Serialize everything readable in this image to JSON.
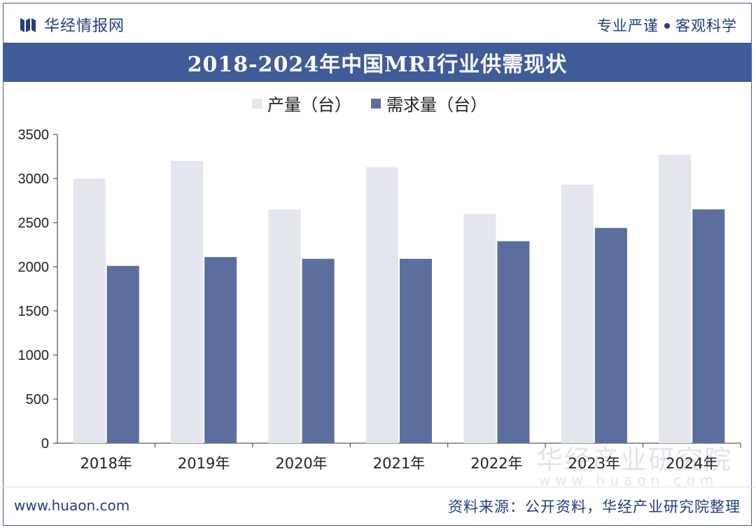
{
  "header": {
    "brand_name": "华经情报网",
    "motto_left": "专业严谨",
    "motto_right": "客观科学"
  },
  "colors": {
    "production": "#e3e6ed",
    "demand": "#5b6e9e",
    "title_bg": "#3f5c99",
    "brand": "#233e7c"
  },
  "footer": {
    "website": "www.huaon.com",
    "source": "资料来源：公开资料，华经产业研究院整理"
  },
  "watermark": {
    "cn": "华经产业研究院",
    "url": "www.huaon.com"
  },
  "chart_data": {
    "type": "bar",
    "title": "2018-2024年中国MRI行业供需现状",
    "categories": [
      "2018年",
      "2019年",
      "2020年",
      "2021年",
      "2022年",
      "2023年",
      "2024年"
    ],
    "series": [
      {
        "name": "产量（台）",
        "values": [
          3000,
          3200,
          2650,
          3130,
          2600,
          2930,
          3270
        ]
      },
      {
        "name": "需求量（台）",
        "values": [
          2010,
          2110,
          2090,
          2090,
          2290,
          2440,
          2650
        ]
      }
    ],
    "yticks": [
      0,
      500,
      1000,
      1500,
      2000,
      2500,
      3000,
      3500
    ],
    "ylim": [
      0,
      3500
    ],
    "xlabel": "",
    "ylabel": "",
    "legend_position": "top-center",
    "grid": false
  }
}
